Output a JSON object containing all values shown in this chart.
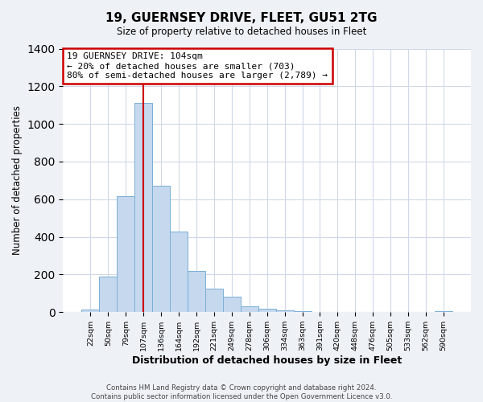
{
  "title": "19, GUERNSEY DRIVE, FLEET, GU51 2TG",
  "subtitle": "Size of property relative to detached houses in Fleet",
  "xlabel": "Distribution of detached houses by size in Fleet",
  "ylabel": "Number of detached properties",
  "bar_labels": [
    "22sqm",
    "50sqm",
    "79sqm",
    "107sqm",
    "136sqm",
    "164sqm",
    "192sqm",
    "221sqm",
    "249sqm",
    "278sqm",
    "306sqm",
    "334sqm",
    "363sqm",
    "391sqm",
    "420sqm",
    "448sqm",
    "476sqm",
    "505sqm",
    "533sqm",
    "562sqm",
    "590sqm"
  ],
  "bar_values": [
    15,
    190,
    615,
    1110,
    670,
    430,
    220,
    125,
    80,
    30,
    20,
    10,
    5,
    2,
    2,
    0,
    0,
    0,
    0,
    0,
    5
  ],
  "bar_color": "#c5d8ee",
  "bar_edge_color": "#7aafd4",
  "ylim": [
    0,
    1400
  ],
  "yticks": [
    0,
    200,
    400,
    600,
    800,
    1000,
    1200,
    1400
  ],
  "annotation_title": "19 GUERNSEY DRIVE: 104sqm",
  "annotation_line1": "← 20% of detached houses are smaller (703)",
  "annotation_line2": "80% of semi-detached houses are larger (2,789) →",
  "annotation_box_color": "#ffffff",
  "annotation_box_edge_color": "#cc0000",
  "vline_color": "#cc0000",
  "footer_line1": "Contains HM Land Registry data © Crown copyright and database right 2024.",
  "footer_line2": "Contains public sector information licensed under the Open Government Licence v3.0.",
  "background_color": "#eef2f7",
  "plot_bg_color": "#ffffff",
  "grid_color": "#d0d8e8"
}
